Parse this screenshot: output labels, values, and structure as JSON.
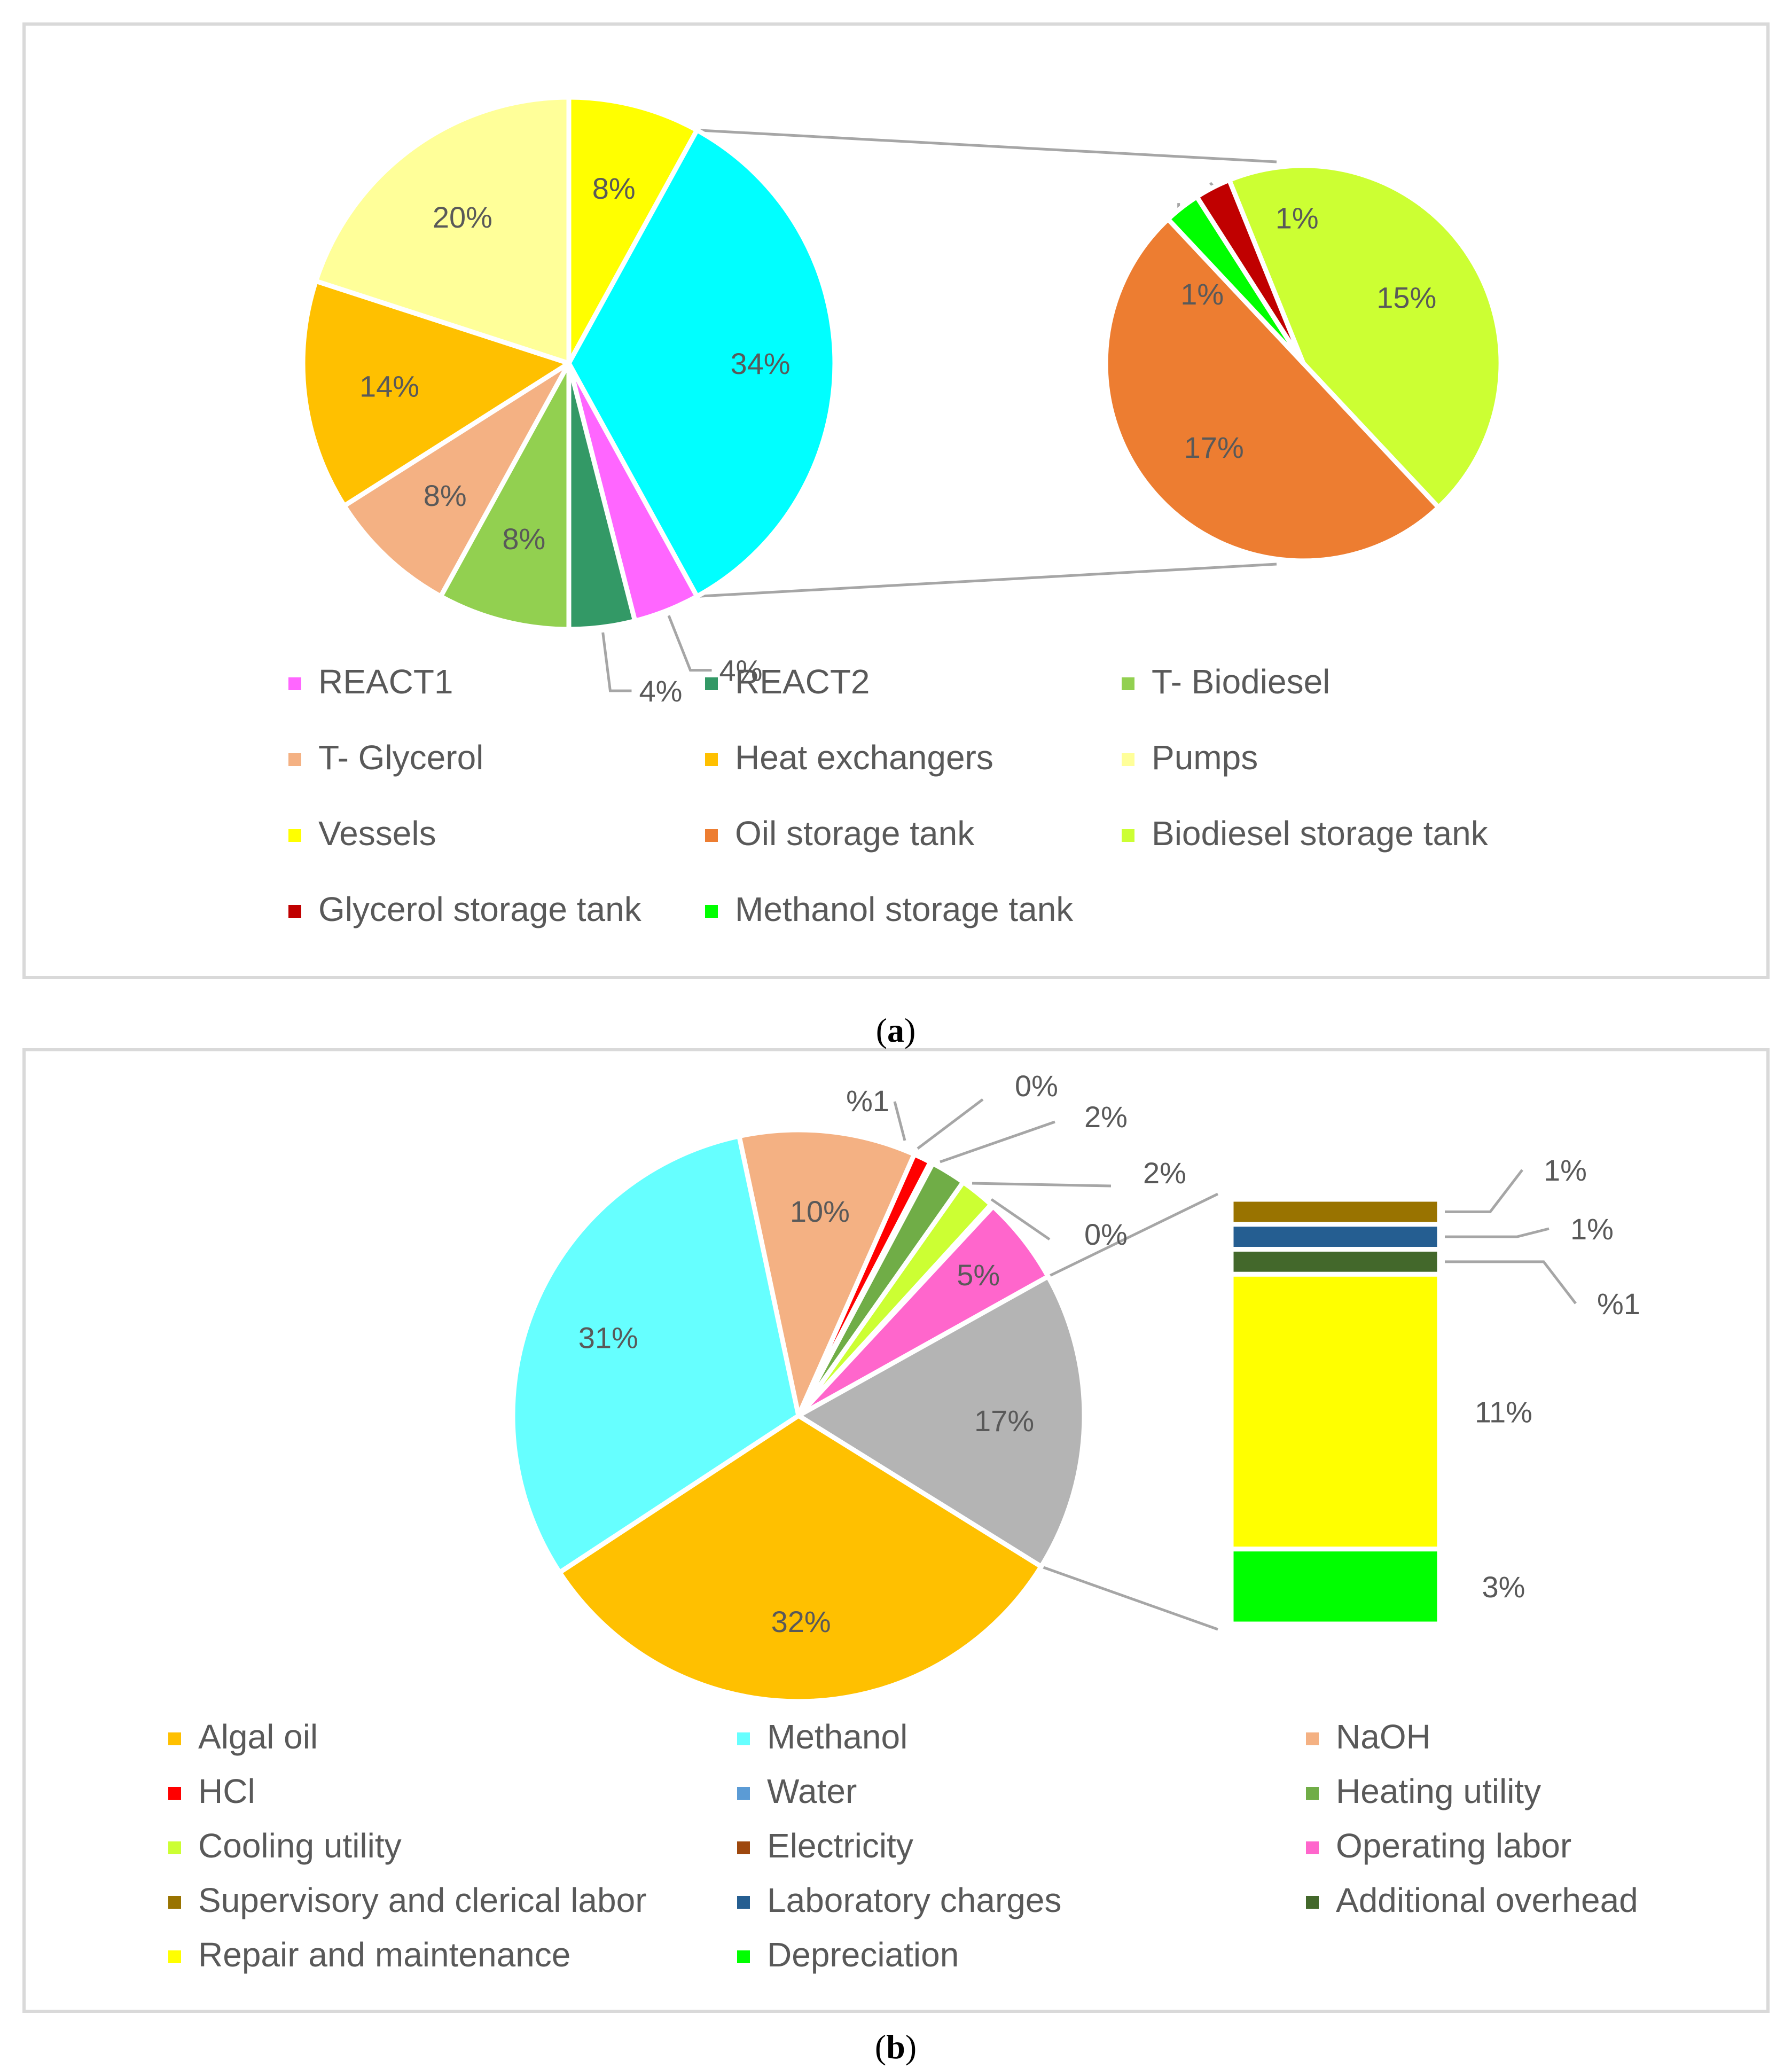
{
  "chart_data": [
    {
      "type": "pie",
      "panel_label": "a",
      "title": "",
      "slices": [
        {
          "name": "REACT1",
          "value": 4,
          "label": "4%",
          "color": "#ff66ff"
        },
        {
          "name": "REACT2",
          "value": 4,
          "label": "4%",
          "color": "#339966"
        },
        {
          "name": "T- Biodiesel",
          "value": 8,
          "label": "8%",
          "color": "#92d050"
        },
        {
          "name": "T- Glycerol",
          "value": 8,
          "label": "8%",
          "color": "#f4b183"
        },
        {
          "name": "Heat exchangers",
          "value": 14,
          "label": "14%",
          "color": "#ffc000"
        },
        {
          "name": "Pumps",
          "value": 20,
          "label": "20%",
          "color": "#ffff99"
        },
        {
          "name": "Vessels",
          "value": 8,
          "label": "8%",
          "color": "#ffff00"
        },
        {
          "name": "Oil storage tank",
          "value": 17,
          "label": "17%",
          "color": "#ed7d31"
        },
        {
          "name": "Biodiesel storage tank",
          "value": 15,
          "label": "15%",
          "color": "#ccff33"
        },
        {
          "name": "Glycerol storage tank",
          "value": 1,
          "label": "1%",
          "color": "#c00000"
        },
        {
          "name": "Methanol storage tank",
          "value": 1,
          "label": "1%",
          "color": "#00ff00"
        }
      ],
      "main_pie": {
        "order": [
          "Vessels",
          "Pumps",
          "Heat exchangers",
          "T- Glycerol",
          "T- Biodiesel",
          "REACT2",
          "REACT1"
        ],
        "other_segment": {
          "value": 34,
          "label": "34%",
          "color": "#00ffff"
        }
      },
      "secondary_pie": {
        "type": "pie-of-pie",
        "order": [
          "Biodiesel storage tank",
          "Oil storage tank",
          "Methanol storage tank",
          "Glycerol storage tank"
        ]
      },
      "legend": [
        "REACT1",
        "REACT2",
        "T- Biodiesel",
        "T- Glycerol",
        "Heat exchangers",
        "Pumps",
        "Vessels",
        "Oil storage tank",
        "Biodiesel storage tank",
        "Glycerol storage tank",
        "Methanol storage tank"
      ]
    },
    {
      "type": "pie",
      "panel_label": "b",
      "title": "",
      "slices": [
        {
          "name": "Algal oil",
          "value": 32,
          "label": "32%",
          "color": "#ffc000"
        },
        {
          "name": "Methanol",
          "value": 31,
          "label": "31%",
          "color": "#66ffff"
        },
        {
          "name": "NaOH",
          "value": 10,
          "label": "10%",
          "color": "#f4b183"
        },
        {
          "name": "HCl",
          "value": 1,
          "label": "%1",
          "color": "#ff0000"
        },
        {
          "name": "Water",
          "value": 0,
          "label": "0%",
          "color": "#5b9bd5"
        },
        {
          "name": "Heating utility",
          "value": 2,
          "label": "2%",
          "color": "#70ad47"
        },
        {
          "name": "Cooling utility",
          "value": 2,
          "label": "2%",
          "color": "#ccff33"
        },
        {
          "name": "Electricity",
          "value": 0,
          "label": "0%",
          "color": "#9e480e"
        },
        {
          "name": "Operating labor",
          "value": 5,
          "label": "5%",
          "color": "#ff66cc"
        },
        {
          "name": "Supervisory and clerical labor",
          "value": 1,
          "label": "1%",
          "color": "#997300"
        },
        {
          "name": "Laboratory charges",
          "value": 1,
          "label": "1%",
          "color": "#255e91"
        },
        {
          "name": "Additional overhead",
          "value": 1,
          "label": "%1",
          "color": "#43682b"
        },
        {
          "name": "Repair and maintenance",
          "value": 11,
          "label": "11%",
          "color": "#ffff00"
        },
        {
          "name": "Depreciation",
          "value": 3,
          "label": "3%",
          "color": "#00ff00"
        }
      ],
      "main_pie": {
        "order": [
          "NaOH",
          "HCl",
          "Water",
          "Heating utility",
          "Cooling utility",
          "Electricity",
          "Operating labor",
          "Algal oil",
          "Methanol"
        ],
        "other_segment": {
          "value": 17,
          "label": "17%",
          "color": "#b4b4b4"
        }
      },
      "secondary_bar": {
        "type": "bar-of-pie",
        "order": [
          "Supervisory and clerical labor",
          "Laboratory charges",
          "Additional overhead",
          "Repair and maintenance",
          "Depreciation"
        ]
      },
      "legend": [
        "Algal oil",
        "Methanol",
        "NaOH",
        "HCl",
        "Water",
        "Heating utility",
        "Cooling utility",
        "Electricity",
        "Operating labor",
        "Supervisory and clerical labor",
        "Laboratory charges",
        "Additional overhead",
        "Repair and maintenance",
        "Depreciation"
      ]
    }
  ],
  "captions": {
    "a": {
      "open": "(",
      "letter": "a",
      "close": ")"
    },
    "b": {
      "open": "(",
      "letter": "b",
      "close": ")"
    }
  }
}
